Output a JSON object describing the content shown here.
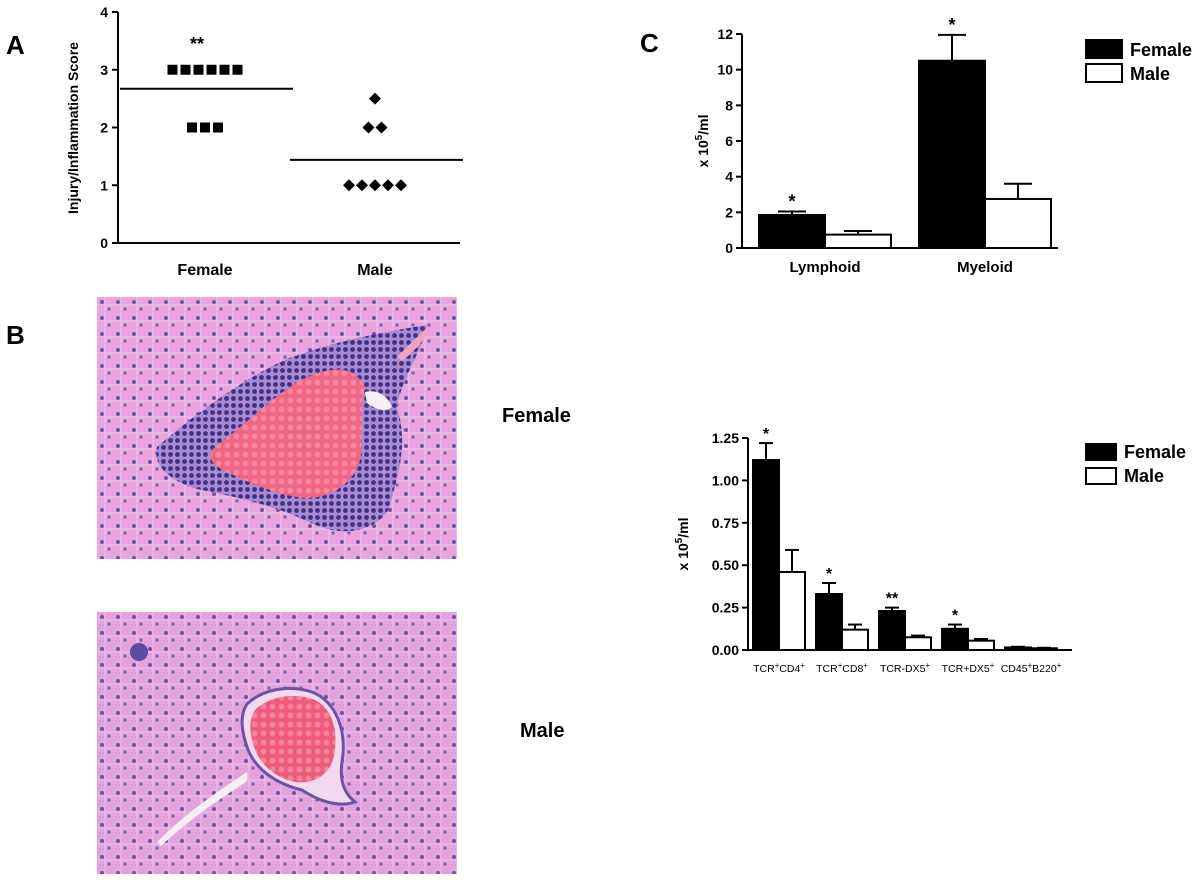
{
  "panels": {
    "a_letter": "A",
    "b_letter": "B",
    "c_letter": "C"
  },
  "histology": {
    "female_label": "Female",
    "male_label": "Male",
    "tissue_color": "#e7a4dd",
    "nuclei_color": "#4a3c8c",
    "vessel_color": "#ee5a7a"
  },
  "chart_data": [
    {
      "id": "scatter_A",
      "type": "scatter",
      "ylabel": "Injury/Inflammation Score",
      "categories": [
        "Female",
        "Male"
      ],
      "ylim": [
        0,
        4
      ],
      "yticks": [
        0,
        1,
        2,
        3,
        4
      ],
      "series": [
        {
          "category": "Female",
          "marker": "square",
          "points": [
            3,
            3,
            3,
            3,
            3,
            3,
            2,
            2,
            2
          ],
          "mean": 2.67
        },
        {
          "category": "Male",
          "marker": "diamond",
          "points": [
            2.5,
            2,
            2,
            1,
            1,
            1,
            1,
            1
          ],
          "mean": 1.44
        }
      ],
      "annotations": [
        {
          "category": "Female",
          "text": "**",
          "y": 3.45
        }
      ]
    },
    {
      "id": "bar_C_top",
      "type": "bar",
      "ylabel": "x 10<sup>5</sup>/ml",
      "ylabel_main": "x 10",
      "ylabel_sup": "5",
      "ylabel_tail": "/ml",
      "categories": [
        "Lymphoid",
        "Myeloid"
      ],
      "ylim": [
        0,
        12
      ],
      "yticks": [
        0,
        2,
        4,
        6,
        8,
        10,
        12
      ],
      "series": [
        {
          "name": "Female",
          "fill": "#000000",
          "values": [
            1.85,
            10.5
          ],
          "errors": [
            0.2,
            1.45
          ]
        },
        {
          "name": "Male",
          "fill": "#ffffff",
          "values": [
            0.75,
            2.75
          ],
          "errors": [
            0.2,
            0.85
          ]
        }
      ],
      "significance": [
        {
          "index": 0,
          "text": "*"
        },
        {
          "index": 1,
          "text": "*"
        }
      ],
      "legend": "top-right"
    },
    {
      "id": "bar_C_bottom",
      "type": "bar",
      "ylabel_main": "x 10",
      "ylabel_sup": "5",
      "ylabel_tail": "/ml",
      "categories": [
        {
          "parts": [
            [
              "TCR",
              ""
            ],
            [
              "+",
              "sup"
            ],
            [
              "CD4",
              ""
            ],
            [
              "+",
              "sup"
            ]
          ]
        },
        {
          "parts": [
            [
              "TCR",
              ""
            ],
            [
              "+",
              "sup"
            ],
            [
              "CD8",
              ""
            ],
            [
              "+",
              "sup"
            ]
          ]
        },
        {
          "parts": [
            [
              "TCR-DX5",
              ""
            ],
            [
              "+",
              "sup"
            ]
          ]
        },
        {
          "parts": [
            [
              "TCR+DX5",
              ""
            ],
            [
              "+",
              "sup"
            ]
          ]
        },
        {
          "parts": [
            [
              "CD45",
              ""
            ],
            [
              "+",
              "sup"
            ],
            [
              "B220",
              ""
            ],
            [
              "+",
              "sup"
            ]
          ]
        }
      ],
      "ylim": [
        0,
        1.25
      ],
      "yticks": [
        "0.00",
        "0.25",
        "0.50",
        "0.75",
        "1.00",
        "1.25"
      ],
      "series": [
        {
          "name": "Female",
          "fill": "#000000",
          "values": [
            1.12,
            0.33,
            0.23,
            0.125,
            0.015
          ],
          "errors": [
            0.1,
            0.065,
            0.02,
            0.025,
            0.004
          ]
        },
        {
          "name": "Male",
          "fill": "#ffffff",
          "values": [
            0.46,
            0.12,
            0.075,
            0.055,
            0.01
          ],
          "errors": [
            0.13,
            0.03,
            0.01,
            0.01,
            0.003
          ]
        }
      ],
      "significance": [
        {
          "index": 0,
          "text": "*"
        },
        {
          "index": 1,
          "text": "*"
        },
        {
          "index": 2,
          "text": "**"
        },
        {
          "index": 3,
          "text": "*"
        }
      ],
      "legend": "top-right"
    }
  ]
}
